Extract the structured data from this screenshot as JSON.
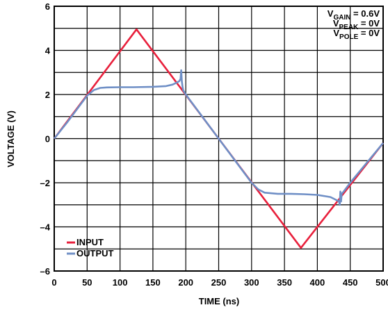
{
  "chart_data": {
    "type": "line",
    "xlabel": "TIME (ns)",
    "ylabel": "VOLTAGE (V)",
    "xlim": [
      0,
      500
    ],
    "ylim": [
      -6,
      6
    ],
    "grid": true,
    "legend_placement": "bottom-left",
    "x_ticks": [
      "0",
      "50",
      "100",
      "150",
      "200",
      "250",
      "300",
      "350",
      "400",
      "450",
      "500"
    ],
    "y_ticks": [
      "6",
      "4",
      "2",
      "0",
      "–2",
      "–4",
      "–6"
    ],
    "annotations": [
      {
        "prefix": "V",
        "subscript": "GAIN",
        "suffix": " = 0.6V"
      },
      {
        "prefix": "V",
        "subscript": "PEAK",
        "suffix": " = 0V"
      },
      {
        "prefix": "V",
        "subscript": "POLE",
        "suffix": " = 0V"
      }
    ],
    "series": [
      {
        "name": "INPUT",
        "color": "#e8203c",
        "x": [
          0,
          125,
          375,
          500
        ],
        "y": [
          0,
          4.95,
          -4.95,
          -0.2
        ]
      },
      {
        "name": "OUTPUT",
        "color": "#6f8fc6",
        "x": [
          0,
          20,
          40,
          50,
          60,
          70,
          80,
          100,
          120,
          150,
          170,
          180,
          187,
          190,
          192,
          193,
          194,
          195,
          196,
          198,
          200,
          225,
          250,
          275,
          300,
          310,
          320,
          340,
          360,
          380,
          400,
          420,
          430,
          433,
          434,
          435,
          436,
          437,
          440,
          450,
          475,
          500
        ],
        "y": [
          0,
          0.75,
          1.55,
          1.95,
          2.2,
          2.3,
          2.32,
          2.33,
          2.33,
          2.35,
          2.38,
          2.45,
          2.55,
          2.6,
          2.7,
          3.1,
          2.6,
          2.35,
          2.2,
          2.1,
          2.0,
          1.0,
          0,
          -1.0,
          -2.0,
          -2.3,
          -2.45,
          -2.5,
          -2.5,
          -2.52,
          -2.55,
          -2.65,
          -2.8,
          -2.85,
          -3.0,
          -2.4,
          -2.85,
          -2.5,
          -2.4,
          -2.0,
          -1.1,
          -0.2
        ]
      }
    ]
  }
}
